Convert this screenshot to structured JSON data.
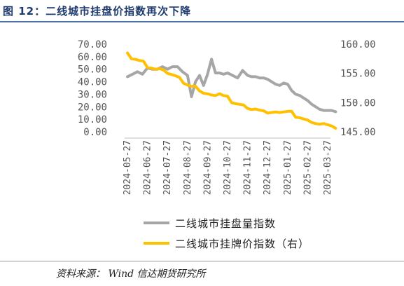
{
  "figure": {
    "title": "图 12：二线城市挂盘价指数再次下降",
    "source": "资料来源：  Wind  信达期货研究所"
  },
  "chart_data": {
    "type": "line",
    "x_categories": [
      "2024-05-27",
      "2024-06-27",
      "2024-07-27",
      "2024-08-27",
      "2024-09-27",
      "2024-10-27",
      "2024-11-27",
      "2024-12-27",
      "2025-01-27",
      "2025-02-27",
      "2025-03-27"
    ],
    "left_axis": {
      "min": 0,
      "max": 70,
      "ticks": [
        "0.00",
        "10.00",
        "20.00",
        "30.00",
        "40.00",
        "50.00",
        "60.00",
        "70.00"
      ]
    },
    "right_axis": {
      "min": 145,
      "max": 160,
      "ticks": [
        "145.00",
        "150.00",
        "155.00",
        "160.00"
      ]
    },
    "grid": false,
    "legend_position": "bottom",
    "series": [
      {
        "name": "二线城市挂盘量指数",
        "axis": "left",
        "color": "#a6a6a6",
        "x": [
          0,
          0.25,
          0.5,
          0.75,
          1,
          1.25,
          1.5,
          1.75,
          2,
          2.25,
          2.5,
          2.75,
          3,
          3.2,
          3.4,
          3.6,
          3.8,
          4,
          4.2,
          4.4,
          4.6,
          4.8,
          5,
          5.25,
          5.5,
          5.75,
          6,
          6.2,
          6.4,
          6.6,
          6.8,
          7,
          7.2,
          7.4,
          7.6,
          7.8,
          8,
          8.2,
          8.4,
          8.6,
          8.8,
          9,
          9.2,
          9.4,
          9.6,
          9.8,
          10,
          10.2,
          10.4
        ],
        "values": [
          44,
          46,
          48,
          46,
          51,
          50,
          50,
          52,
          50,
          52,
          52,
          48,
          45,
          28,
          40,
          45,
          37,
          46,
          58,
          47,
          47,
          46,
          47,
          45,
          43,
          49,
          45,
          44,
          44,
          43,
          43,
          42,
          40,
          38,
          37,
          39,
          38,
          33,
          30,
          29,
          27,
          25,
          22,
          20,
          18,
          17,
          17,
          17,
          16
        ]
      },
      {
        "name": "二线城市挂牌价指数（右）",
        "axis": "right",
        "color": "#ffc000",
        "x": [
          0,
          0.2,
          0.4,
          0.6,
          0.8,
          1,
          1.2,
          1.4,
          1.6,
          1.8,
          2,
          2.2,
          2.4,
          2.6,
          2.8,
          3,
          3.2,
          3.4,
          3.6,
          3.8,
          4,
          4.2,
          4.4,
          4.6,
          4.8,
          5,
          5.2,
          5.4,
          5.6,
          5.8,
          6,
          6.2,
          6.4,
          6.6,
          6.8,
          7,
          7.2,
          7.4,
          7.6,
          7.8,
          8,
          8.2,
          8.4,
          8.6,
          8.8,
          9,
          9.2,
          9.4,
          9.6,
          9.8,
          10,
          10.2,
          10.4
        ],
        "values": [
          158.5,
          157.5,
          157.4,
          157.2,
          157.1,
          156,
          155.9,
          155.7,
          155.8,
          155.6,
          155,
          154.8,
          154.6,
          154.3,
          153.3,
          153,
          152.8,
          152.8,
          152,
          151.6,
          151.5,
          151.3,
          151.2,
          151.5,
          151.2,
          151.1,
          150,
          149.8,
          149.7,
          149.6,
          149,
          148.8,
          148.9,
          148.7,
          148.6,
          148.2,
          148.3,
          148.4,
          148.3,
          148.4,
          148.5,
          148.5,
          147.5,
          147.4,
          147.2,
          147,
          146.6,
          146.4,
          146.3,
          146.4,
          146.2,
          146,
          145.6
        ]
      }
    ]
  }
}
